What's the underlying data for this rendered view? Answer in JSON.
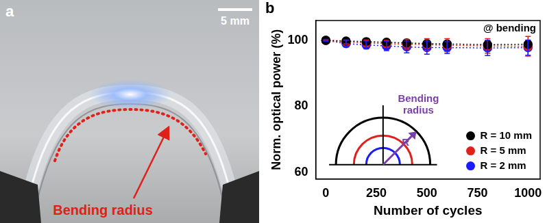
{
  "image": {
    "panel_label": "a",
    "scale_bar": "5 mm",
    "annotation": "Bending radius"
  },
  "chart_data": {
    "type": "scatter",
    "x_label": "Number of cycles",
    "y_label": "Norm. optical power (%)",
    "annotations": [
      "b",
      "@ bending",
      "Bending radius",
      "R"
    ],
    "x": [
      0,
      100,
      200,
      300,
      400,
      500,
      600,
      800,
      1000
    ],
    "series": [
      {
        "name": "R = 10 mm",
        "color": "#000000",
        "marker": "circle",
        "line_style": "dotted",
        "values": [
          100,
          99.8,
          99.6,
          99.4,
          99.2,
          99.0,
          98.9,
          98.7,
          98.8
        ],
        "errors": [
          0,
          0.5,
          0.6,
          0.5,
          0.8,
          0.8,
          0.8,
          1.2,
          1.0
        ]
      },
      {
        "name": "R = 5 mm",
        "color": "#e0201b",
        "marker": "circle",
        "line_style": "dotted",
        "values": [
          100,
          99.5,
          99.2,
          99.0,
          98.8,
          98.7,
          98.5,
          98.3,
          98.2
        ],
        "errors": [
          0,
          0.6,
          0.9,
          1.0,
          1.5,
          1.8,
          2.0,
          2.2,
          3.0
        ]
      },
      {
        "name": "R = 2 mm",
        "color": "#1a1aff",
        "marker": "circle",
        "line_style": "dotted",
        "values": [
          100,
          99.0,
          98.6,
          98.3,
          98.0,
          97.8,
          97.8,
          97.7,
          97.8
        ],
        "errors": [
          0.3,
          1.0,
          1.2,
          1.4,
          1.8,
          2.0,
          1.8,
          2.3,
          2.3
        ]
      }
    ],
    "xlim": [
      -50,
      1060
    ],
    "xticks": [
      0,
      250,
      500,
      750,
      1000
    ],
    "ylim": [
      58,
      106
    ],
    "yticks": [
      60,
      80,
      100
    ],
    "grid": false,
    "legend": "lower right"
  }
}
